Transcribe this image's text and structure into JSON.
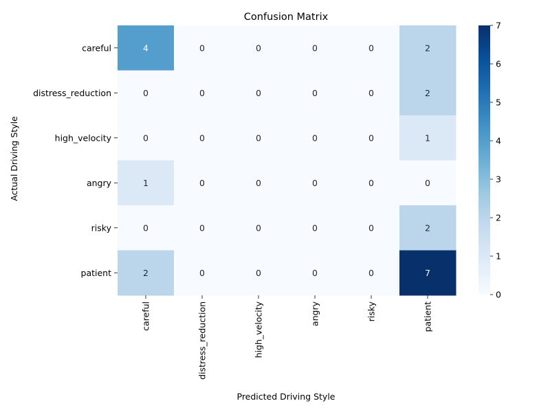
{
  "chart_data": {
    "type": "heatmap",
    "title": "Confusion Matrix",
    "xlabel": "Predicted Driving Style",
    "ylabel": "Actual Driving Style",
    "x_categories": [
      "careful",
      "distress_reduction",
      "high_velocity",
      "angry",
      "risky",
      "patient"
    ],
    "y_categories": [
      "careful",
      "distress_reduction",
      "high_velocity",
      "angry",
      "risky",
      "patient"
    ],
    "values": [
      [
        4,
        0,
        0,
        0,
        0,
        2
      ],
      [
        0,
        0,
        0,
        0,
        0,
        2
      ],
      [
        0,
        0,
        0,
        0,
        0,
        1
      ],
      [
        1,
        0,
        0,
        0,
        0,
        0
      ],
      [
        0,
        0,
        0,
        0,
        0,
        2
      ],
      [
        2,
        0,
        0,
        0,
        0,
        7
      ]
    ],
    "colorbar": {
      "min": 0,
      "max": 7,
      "ticks": [
        "0",
        "1",
        "2",
        "3",
        "4",
        "5",
        "6",
        "7"
      ]
    },
    "colormap": "Blues",
    "colors": {
      "low": "#f7fbff",
      "high": "#08306b"
    }
  }
}
